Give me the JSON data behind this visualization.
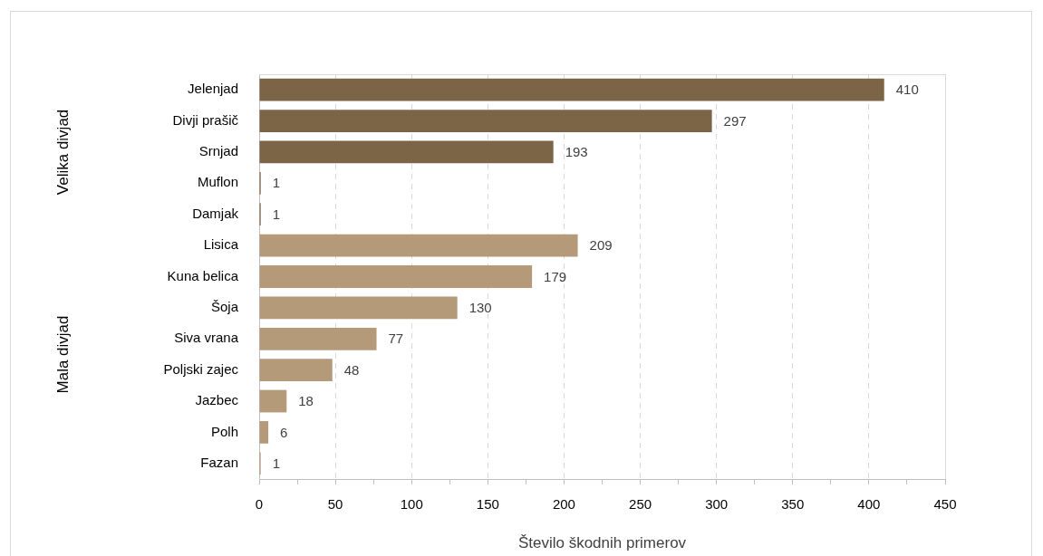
{
  "chart_data": {
    "type": "bar",
    "orientation": "horizontal",
    "xlabel": "Število škodnih primerov",
    "categories": [
      "Jelenjad",
      "Divji prašič",
      "Srnjad",
      "Muflon",
      "Damjak",
      "Lisica",
      "Kuna belica",
      "Šoja",
      "Siva vrana",
      "Poljski zajec",
      "Jazbec",
      "Polh",
      "Fazan"
    ],
    "values": [
      410,
      297,
      193,
      1,
      1,
      209,
      179,
      130,
      77,
      48,
      18,
      6,
      1
    ],
    "colors": [
      "#7c6446",
      "#7c6446",
      "#7c6446",
      "#7c6446",
      "#7c6446",
      "#b59a7a",
      "#b59a7a",
      "#b59a7a",
      "#b59a7a",
      "#b59a7a",
      "#b59a7a",
      "#b59a7a",
      "#b59a7a"
    ],
    "annotations": [
      "Velika divjad",
      "Mala divjad"
    ],
    "xlim": [
      0,
      450
    ],
    "xticks": [
      0,
      {
        "value": 25,
        "label": null
      },
      50,
      {
        "value": 75,
        "label": null
      },
      100,
      {
        "value": 125,
        "label": null
      },
      150,
      {
        "value": 175,
        "label": null
      },
      200,
      {
        "value": 225,
        "label": null
      },
      250,
      {
        "value": 275,
        "label": null
      },
      300,
      {
        "value": 325,
        "label": null
      },
      350,
      {
        "value": 375,
        "label": null
      },
      400,
      {
        "value": 425,
        "label": null
      },
      450
    ],
    "grid": "x",
    "data_labels": true,
    "legend": false
  }
}
